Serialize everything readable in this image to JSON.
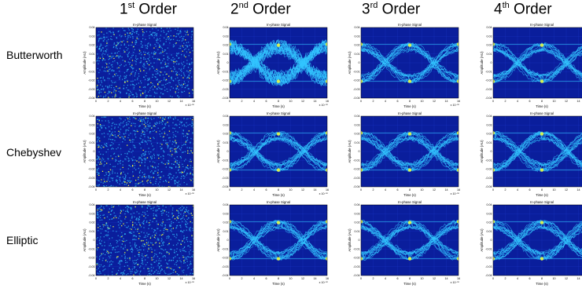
{
  "columns": [
    {
      "num": "1",
      "sup": "st",
      "word": "Order"
    },
    {
      "num": "2",
      "sup": "nd",
      "word": "Order"
    },
    {
      "num": "3",
      "sup": "rd",
      "word": "Order"
    },
    {
      "num": "4",
      "sup": "th",
      "word": "Order"
    }
  ],
  "rows": [
    "Butterworth",
    "Chebyshev",
    "Elliptic"
  ],
  "chart_data": [
    {
      "type": "heatmap",
      "filter": "Butterworth",
      "order": "1st",
      "title": "In-phase Signal",
      "xlabel": "Time (s)",
      "ylabel": "Amplitude (AU)",
      "x_exponent": "x 10⁻¹⁰",
      "xlim": [
        0,
        16
      ],
      "ylim": [
        -0.04,
        0.04
      ],
      "x_ticks": [
        "0",
        "2",
        "4",
        "6",
        "8",
        "10",
        "12",
        "14",
        "16"
      ],
      "y_ticks": [
        "0.04",
        "0.03",
        "0.02",
        "0.01",
        "0",
        "-0.01",
        "-0.02",
        "-0.03",
        "-0.04"
      ],
      "eye_opening": "none"
    },
    {
      "type": "heatmap",
      "filter": "Butterworth",
      "order": "2nd",
      "title": "In-phase Signal",
      "xlabel": "Time (s)",
      "ylabel": "Amplitude (AU)",
      "x_exponent": "x 10⁻¹⁰",
      "xlim": [
        0,
        16
      ],
      "ylim": [
        -0.04,
        0.04
      ],
      "x_ticks": [
        "0",
        "2",
        "4",
        "6",
        "8",
        "10",
        "12",
        "14",
        "16"
      ],
      "y_ticks": [
        "0.04",
        "0.03",
        "0.02",
        "0.01",
        "0",
        "-0.01",
        "-0.02",
        "-0.03",
        "-0.04"
      ],
      "eye_opening": "partial"
    },
    {
      "type": "heatmap",
      "filter": "Butterworth",
      "order": "3rd",
      "title": "In-phase Signal",
      "xlabel": "Time (s)",
      "ylabel": "Amplitude (AU)",
      "x_exponent": "x 10⁻¹⁰",
      "xlim": [
        0,
        16
      ],
      "ylim": [
        -0.04,
        0.04
      ],
      "x_ticks": [
        "0",
        "2",
        "4",
        "6",
        "8",
        "10",
        "12",
        "14",
        "16"
      ],
      "y_ticks": [
        "0.04",
        "0.03",
        "0.02",
        "0.01",
        "0",
        "-0.01",
        "-0.02",
        "-0.03",
        "-0.04"
      ],
      "eye_opening": "open"
    },
    {
      "type": "heatmap",
      "filter": "Butterworth",
      "order": "4th",
      "title": "In-phase Signal",
      "xlabel": "Time (s)",
      "ylabel": "Amplitude (AU)",
      "x_exponent": "x 10⁻¹⁰",
      "xlim": [
        0,
        16
      ],
      "ylim": [
        -0.04,
        0.04
      ],
      "x_ticks": [
        "0",
        "2",
        "4",
        "6",
        "8",
        "10",
        "12",
        "14",
        "16"
      ],
      "y_ticks": [
        "0.04",
        "0.03",
        "0.02",
        "0.01",
        "0",
        "-0.01",
        "-0.02",
        "-0.03",
        "-0.04"
      ],
      "eye_opening": "open"
    },
    {
      "type": "heatmap",
      "filter": "Chebyshev",
      "order": "1st",
      "title": "In-phase Signal",
      "xlabel": "Time (s)",
      "ylabel": "Amplitude (AU)",
      "x_exponent": "x 10⁻¹⁰",
      "xlim": [
        0,
        16
      ],
      "ylim": [
        -0.04,
        0.04
      ],
      "x_ticks": [
        "0",
        "2",
        "4",
        "6",
        "8",
        "10",
        "12",
        "14",
        "16"
      ],
      "y_ticks": [
        "0.04",
        "0.03",
        "0.02",
        "0.01",
        "0",
        "-0.01",
        "-0.02",
        "-0.03",
        "-0.04"
      ],
      "eye_opening": "none"
    },
    {
      "type": "heatmap",
      "filter": "Chebyshev",
      "order": "2nd",
      "title": "In-phase Signal",
      "xlabel": "Time (s)",
      "ylabel": "Amplitude (AU)",
      "x_exponent": "x 10⁻¹⁰",
      "xlim": [
        0,
        16
      ],
      "ylim": [
        -0.04,
        0.04
      ],
      "x_ticks": [
        "0",
        "2",
        "4",
        "6",
        "8",
        "10",
        "12",
        "14",
        "16"
      ],
      "y_ticks": [
        "0.04",
        "0.03",
        "0.02",
        "0.01",
        "0",
        "-0.01",
        "-0.02",
        "-0.03",
        "-0.04"
      ],
      "eye_opening": "open"
    },
    {
      "type": "heatmap",
      "filter": "Chebyshev",
      "order": "3rd",
      "title": "In-phase Signal",
      "xlabel": "Time (s)",
      "ylabel": "Amplitude (AU)",
      "x_exponent": "x 10⁻¹⁰",
      "xlim": [
        0,
        16
      ],
      "ylim": [
        -0.04,
        0.04
      ],
      "x_ticks": [
        "0",
        "2",
        "4",
        "6",
        "8",
        "10",
        "12",
        "14",
        "16"
      ],
      "y_ticks": [
        "0.04",
        "0.03",
        "0.02",
        "0.01",
        "0",
        "-0.01",
        "-0.02",
        "-0.03",
        "-0.04"
      ],
      "eye_opening": "open"
    },
    {
      "type": "heatmap",
      "filter": "Chebyshev",
      "order": "4th",
      "title": "In-phase Signal",
      "xlabel": "Time (s)",
      "ylabel": "Amplitude (AU)",
      "x_exponent": "x 10⁻¹⁰",
      "xlim": [
        0,
        16
      ],
      "ylim": [
        -0.04,
        0.04
      ],
      "x_ticks": [
        "0",
        "2",
        "4",
        "6",
        "8",
        "10",
        "12",
        "14",
        "16"
      ],
      "y_ticks": [
        "0.04",
        "0.03",
        "0.02",
        "0.01",
        "0",
        "-0.01",
        "-0.02",
        "-0.03",
        "-0.04"
      ],
      "eye_opening": "open"
    },
    {
      "type": "heatmap",
      "filter": "Elliptic",
      "order": "1st",
      "title": "In-phase Signal",
      "xlabel": "Time (s)",
      "ylabel": "Amplitude (AU)",
      "x_exponent": "x 10⁻¹⁰",
      "xlim": [
        0,
        16
      ],
      "ylim": [
        -0.04,
        0.04
      ],
      "x_ticks": [
        "0",
        "2",
        "4",
        "6",
        "8",
        "10",
        "12",
        "14",
        "16"
      ],
      "y_ticks": [
        "0.04",
        "0.03",
        "0.02",
        "0.01",
        "0",
        "-0.01",
        "-0.02",
        "-0.03",
        "-0.04"
      ],
      "eye_opening": "none"
    },
    {
      "type": "heatmap",
      "filter": "Elliptic",
      "order": "2nd",
      "title": "In-phase Signal",
      "xlabel": "Time (s)",
      "ylabel": "Amplitude (AU)",
      "x_exponent": "x 10⁻¹⁰",
      "xlim": [
        0,
        16
      ],
      "ylim": [
        -0.04,
        0.04
      ],
      "x_ticks": [
        "0",
        "2",
        "4",
        "6",
        "8",
        "10",
        "12",
        "14",
        "16"
      ],
      "y_ticks": [
        "0.04",
        "0.03",
        "0.02",
        "0.01",
        "0",
        "-0.01",
        "-0.02",
        "-0.03",
        "-0.04"
      ],
      "eye_opening": "open"
    },
    {
      "type": "heatmap",
      "filter": "Elliptic",
      "order": "3rd",
      "title": "In-phase Signal",
      "xlabel": "Time (s)",
      "ylabel": "Amplitude (AU)",
      "x_exponent": "x 10⁻¹⁰",
      "xlim": [
        0,
        16
      ],
      "ylim": [
        -0.04,
        0.04
      ],
      "x_ticks": [
        "0",
        "2",
        "4",
        "6",
        "8",
        "10",
        "12",
        "14",
        "16"
      ],
      "y_ticks": [
        "0.04",
        "0.03",
        "0.02",
        "0.01",
        "0",
        "-0.01",
        "-0.02",
        "-0.03",
        "-0.04"
      ],
      "eye_opening": "open"
    },
    {
      "type": "heatmap",
      "filter": "Elliptic",
      "order": "4th",
      "title": "In-phase Signal",
      "xlabel": "Time (s)",
      "ylabel": "Amplitude (AU)",
      "x_exponent": "x 10⁻¹⁰",
      "xlim": [
        0,
        16
      ],
      "ylim": [
        -0.04,
        0.04
      ],
      "x_ticks": [
        "0",
        "2",
        "4",
        "6",
        "8",
        "10",
        "12",
        "14",
        "16"
      ],
      "y_ticks": [
        "0.04",
        "0.03",
        "0.02",
        "0.01",
        "0",
        "-0.01",
        "-0.02",
        "-0.03",
        "-0.04"
      ],
      "eye_opening": "open"
    }
  ],
  "colors": {
    "background": "#0a1e9c",
    "grid": "#1f3fd6",
    "trace": "#33c6ff",
    "hot": "#f4ff3a",
    "axis": "#000000"
  }
}
